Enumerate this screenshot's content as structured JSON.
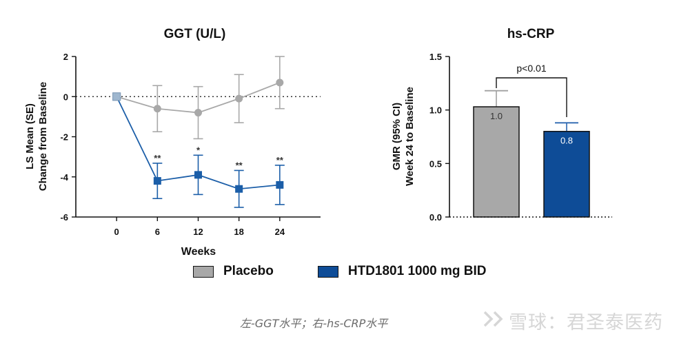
{
  "chart_data": [
    {
      "type": "line",
      "title": "GGT (U/L)",
      "xlabel": "Weeks",
      "ylabel": [
        "LS Mean (SE)",
        "Change from Baseline"
      ],
      "x": [
        0,
        6,
        12,
        18,
        24
      ],
      "xlim": [
        -6,
        30
      ],
      "ylim": [
        -6,
        2
      ],
      "yticks": [
        2,
        0,
        -2,
        -4,
        -6
      ],
      "reference_line": 0,
      "series": [
        {
          "name": "Placebo",
          "color": "#a8a8a8",
          "marker": "circle",
          "values": [
            0,
            -0.6,
            -0.8,
            -0.1,
            0.7
          ],
          "err": [
            0,
            1.15,
            1.3,
            1.2,
            1.3
          ]
        },
        {
          "name": "HTD1801 1000 mg BID",
          "color": "#1b5ea8",
          "marker": "square",
          "values": [
            0,
            -4.2,
            -3.9,
            -4.6,
            -4.4
          ],
          "err": [
            0,
            0.88,
            0.98,
            0.92,
            0.98
          ],
          "significance": [
            "",
            "**",
            "*",
            "**",
            "**"
          ]
        }
      ]
    },
    {
      "type": "bar",
      "title": "hs-CRP",
      "ylabel": [
        "GMR (95% CI)",
        "Week 24 to Baseline"
      ],
      "ylim": [
        0,
        1.5
      ],
      "yticks": [
        "0.0",
        "0.5",
        "1.0",
        "1.5"
      ],
      "categories": [
        "Placebo",
        "HTD1801 1000 mg BID"
      ],
      "values": [
        1.03,
        0.8
      ],
      "value_labels": [
        "1.0",
        "0.8"
      ],
      "upper_ci": [
        1.18,
        0.88
      ],
      "colors": [
        "#a8a8a8",
        "#0e4c97"
      ],
      "annotation": "p<0.01"
    }
  ],
  "legend": [
    {
      "label": "Placebo",
      "color": "#a8a8a8"
    },
    {
      "label": "HTD1801 1000 mg BID",
      "color": "#0e4c97"
    }
  ],
  "caption": "左-GGT水平；右-hs-CRP水平",
  "watermark": "雪球：君圣泰医药"
}
